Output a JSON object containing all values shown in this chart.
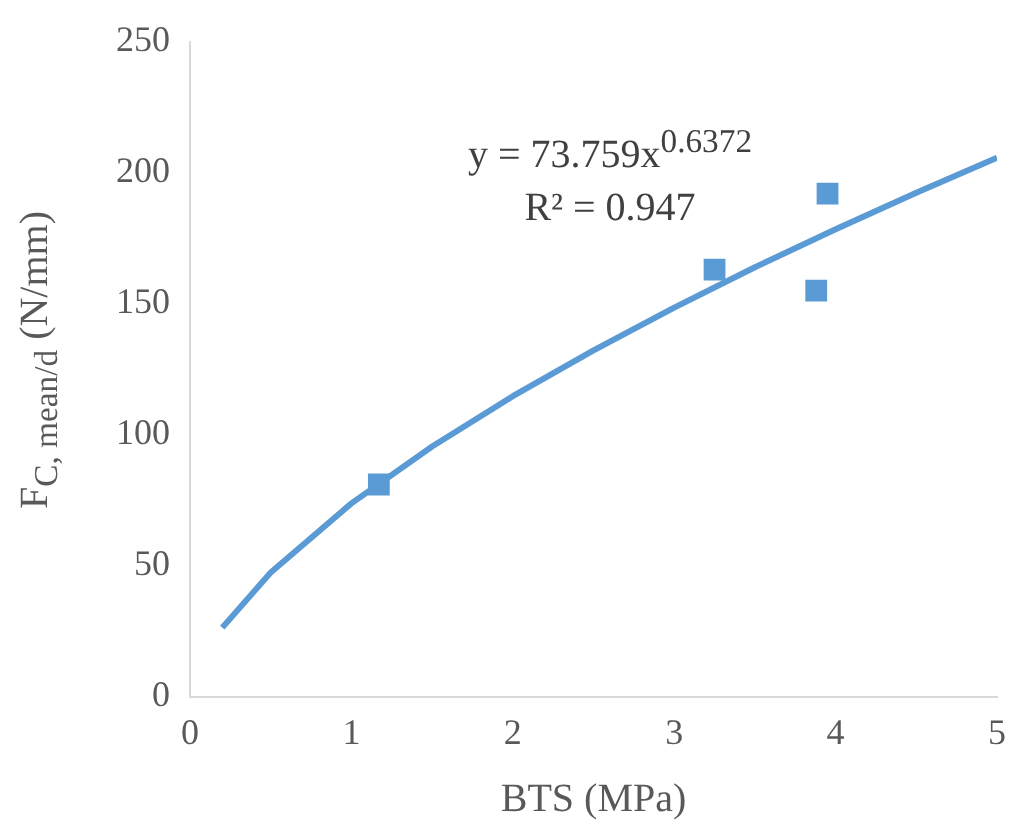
{
  "chart_data": {
    "type": "scatter",
    "xlabel": "BTS (MPa)",
    "ylabel": "F$_{C, mean/d}$ (N/mm)",
    "xlim": [
      0,
      5
    ],
    "xticks": [
      0,
      1,
      2,
      3,
      4,
      5
    ],
    "ylim": [
      0,
      250
    ],
    "yticks": [
      0,
      50,
      100,
      150,
      200,
      250
    ],
    "grid": false,
    "legend": false,
    "marker": "square",
    "annotations": [
      "y = 73.759x$^{0.6372}$",
      "R² = 0.947"
    ],
    "series": [
      {
        "type": "scatter",
        "color": "#5b9bd5",
        "x": [
          1.17,
          3.25,
          3.88,
          3.95
        ],
        "values": [
          81,
          163,
          155,
          192
        ]
      },
      {
        "type": "line",
        "color": "#5b9bd5",
        "marker": "none",
        "line_style": "solid",
        "x": [
          0.2,
          0.5,
          1,
          1.5,
          2,
          2.5,
          3,
          3.5,
          4,
          4.5,
          5
        ],
        "values": [
          26.4,
          47.4,
          73.8,
          95.5,
          114.7,
          132.2,
          148.5,
          163.9,
          178.4,
          192.3,
          205.7
        ]
      }
    ]
  }
}
